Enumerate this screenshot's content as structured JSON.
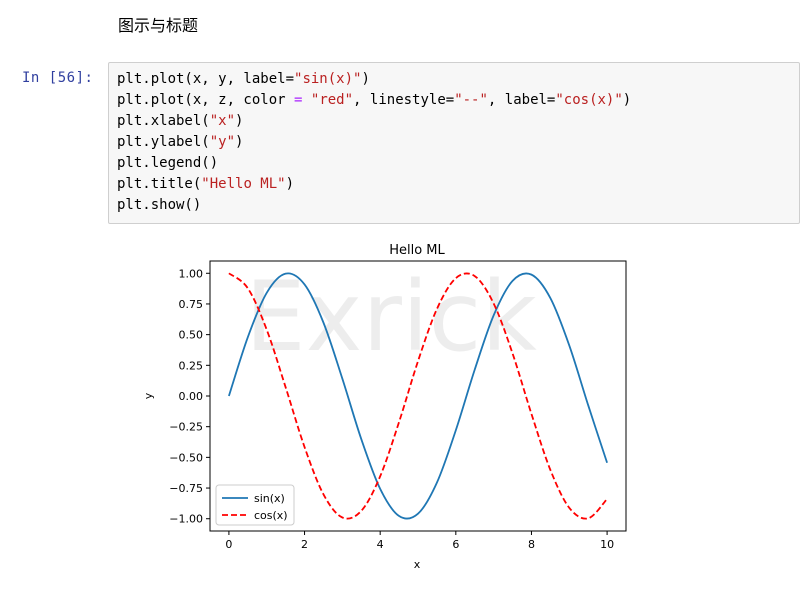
{
  "markdown": {
    "heading": "图示与标题"
  },
  "cell": {
    "prompt": "In  [56]:",
    "code_lines": [
      [
        {
          "t": "plt.plot(x, y, label="
        },
        {
          "t": "\"sin(x)\"",
          "c": "str"
        },
        {
          "t": ")"
        }
      ],
      [
        {
          "t": "plt.plot(x, z, color "
        },
        {
          "t": "=",
          "c": "op"
        },
        {
          "t": " "
        },
        {
          "t": "\"red\"",
          "c": "str"
        },
        {
          "t": ", linestyle="
        },
        {
          "t": "\"--\"",
          "c": "str"
        },
        {
          "t": ", label="
        },
        {
          "t": "\"cos(x)\"",
          "c": "str"
        },
        {
          "t": ")"
        }
      ],
      [
        {
          "t": "plt.xlabel("
        },
        {
          "t": "\"x\"",
          "c": "str"
        },
        {
          "t": ")"
        }
      ],
      [
        {
          "t": "plt.ylabel("
        },
        {
          "t": "\"y\"",
          "c": "str"
        },
        {
          "t": ")"
        }
      ],
      [
        {
          "t": "plt.legend()"
        }
      ],
      [
        {
          "t": "plt.title("
        },
        {
          "t": "\"Hello ML\"",
          "c": "str"
        },
        {
          "t": ")"
        }
      ],
      [
        {
          "t": "plt.show()"
        }
      ]
    ]
  },
  "watermark": "Exrick",
  "chart_data": {
    "type": "line",
    "title": "Hello ML",
    "xlabel": "x",
    "ylabel": "y",
    "xlim": [
      -0.5,
      10.5
    ],
    "ylim": [
      -1.1,
      1.1
    ],
    "xticks": [
      0,
      2,
      4,
      6,
      8,
      10
    ],
    "xtick_labels": [
      "0",
      "2",
      "4",
      "6",
      "8",
      "10"
    ],
    "yticks": [
      1.0,
      0.75,
      0.5,
      0.25,
      0.0,
      -0.25,
      -0.5,
      -0.75,
      -1.0
    ],
    "ytick_labels": [
      "1.00",
      "0.75",
      "0.50",
      "0.25",
      "0.00",
      "−0.25",
      "−0.50",
      "−0.75",
      "−1.00"
    ],
    "grid": false,
    "legend_position": "lower-left",
    "x": [
      0,
      0.5,
      1,
      1.5,
      2,
      2.5,
      3,
      3.5,
      4,
      4.5,
      5,
      5.5,
      6,
      6.5,
      7,
      7.5,
      8,
      8.5,
      9,
      9.5,
      10
    ],
    "series": [
      {
        "name": "sin(x)",
        "color": "#1f77b4",
        "linestyle": "solid",
        "values": [
          0,
          0.479,
          0.841,
          0.997,
          0.909,
          0.598,
          0.141,
          -0.351,
          -0.757,
          -0.978,
          -0.959,
          -0.706,
          -0.279,
          0.215,
          0.657,
          0.938,
          0.989,
          0.798,
          0.412,
          -0.075,
          -0.544
        ]
      },
      {
        "name": "cos(x)",
        "color": "#ff0000",
        "linestyle": "dashed",
        "values": [
          1,
          0.878,
          0.54,
          0.071,
          -0.416,
          -0.801,
          -0.99,
          -0.936,
          -0.654,
          -0.211,
          0.284,
          0.709,
          0.96,
          0.977,
          0.754,
          0.347,
          -0.146,
          -0.602,
          -0.911,
          -0.997,
          -0.839
        ]
      }
    ]
  }
}
